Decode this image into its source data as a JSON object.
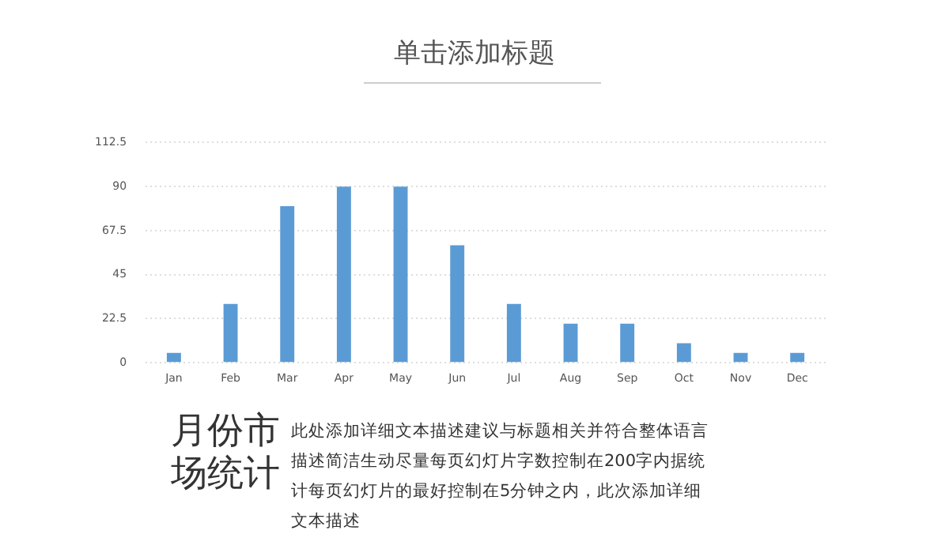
{
  "chart_data": {
    "type": "bar",
    "title": "单击添加标题",
    "categories": [
      "Jan",
      "Feb",
      "Mar",
      "Apr",
      "May",
      "Jun",
      "Jul",
      "Aug",
      "Sep",
      "Oct",
      "Nov",
      "Dec"
    ],
    "values": [
      5,
      30,
      80,
      90,
      90,
      60,
      30,
      20,
      20,
      10,
      5,
      5
    ],
    "color": "#5b9bd5",
    "ylim": [
      0,
      112.5
    ],
    "yticks": [
      0,
      22.5,
      45,
      67.5,
      90,
      112.5
    ],
    "grid": "y",
    "legend": false,
    "annotations": [
      "月份市场统计",
      "此处添加详细文本描述建议与标题相关并符合整体语言描述简洁生动尽量每页幻灯片字数控制在200字内据统计每页幻灯片的最好控制在5分钟之内，此次添加详细文本描述"
    ]
  }
}
